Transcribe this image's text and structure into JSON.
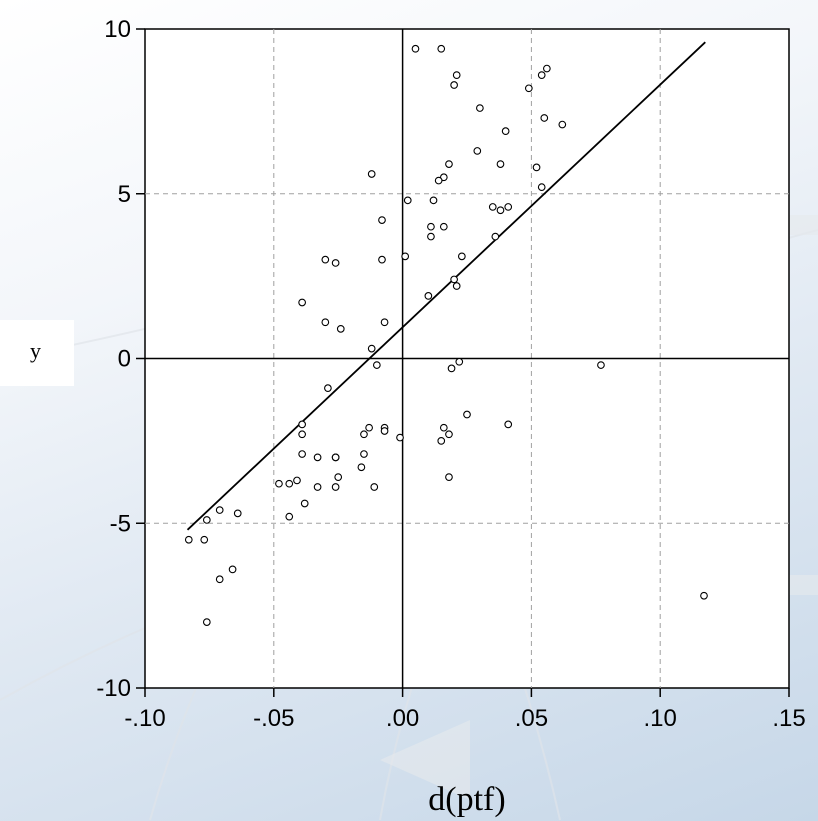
{
  "chart_data": {
    "type": "scatter",
    "title": "",
    "xlabel": "d(ptf)",
    "ylabel": "y",
    "xlim": [
      -0.1,
      0.15
    ],
    "ylim": [
      -10,
      10
    ],
    "x_ticks": [
      -0.1,
      -0.05,
      0.0,
      0.05,
      0.1,
      0.15
    ],
    "x_tick_labels": [
      "-.10",
      "-.05",
      ".00",
      ".05",
      ".10",
      ".15"
    ],
    "y_ticks": [
      -10,
      -5,
      0,
      5,
      10
    ],
    "y_tick_labels": [
      "-10",
      "-5",
      "0",
      "5",
      "10"
    ],
    "grid": true,
    "reference_lines": {
      "x": 0,
      "y": 0
    },
    "fit_line": {
      "x": [
        -0.0835,
        0.1175
      ],
      "y": [
        -5.2,
        9.6
      ]
    },
    "points": [
      [
        0.005,
        9.4
      ],
      [
        0.015,
        9.4
      ],
      [
        0.056,
        8.8
      ],
      [
        0.021,
        8.6
      ],
      [
        0.054,
        8.6
      ],
      [
        0.02,
        8.3
      ],
      [
        0.049,
        8.2
      ],
      [
        0.03,
        7.6
      ],
      [
        0.055,
        7.3
      ],
      [
        0.062,
        7.1
      ],
      [
        0.04,
        6.9
      ],
      [
        0.029,
        6.3
      ],
      [
        0.038,
        5.9
      ],
      [
        0.018,
        5.9
      ],
      [
        0.052,
        5.8
      ],
      [
        -0.012,
        5.6
      ],
      [
        0.016,
        5.5
      ],
      [
        0.014,
        5.4
      ],
      [
        0.054,
        5.2
      ],
      [
        0.002,
        4.8
      ],
      [
        0.012,
        4.8
      ],
      [
        0.035,
        4.6
      ],
      [
        0.041,
        4.6
      ],
      [
        0.038,
        4.5
      ],
      [
        -0.008,
        4.2
      ],
      [
        0.011,
        4.0
      ],
      [
        0.016,
        4.0
      ],
      [
        0.011,
        3.7
      ],
      [
        0.036,
        3.7
      ],
      [
        0.023,
        3.1
      ],
      [
        0.001,
        3.1
      ],
      [
        -0.03,
        3.0
      ],
      [
        -0.026,
        2.9
      ],
      [
        -0.008,
        3.0
      ],
      [
        0.02,
        2.4
      ],
      [
        0.021,
        2.2
      ],
      [
        0.01,
        1.9
      ],
      [
        -0.039,
        1.7
      ],
      [
        -0.03,
        1.1
      ],
      [
        -0.007,
        1.1
      ],
      [
        -0.024,
        0.9
      ],
      [
        -0.012,
        0.3
      ],
      [
        -0.01,
        -0.2
      ],
      [
        0.022,
        -0.1
      ],
      [
        0.019,
        -0.3
      ],
      [
        0.077,
        -0.2
      ],
      [
        -0.029,
        -0.9
      ],
      [
        0.025,
        -1.7
      ],
      [
        0.041,
        -2.0
      ],
      [
        -0.039,
        -2.0
      ],
      [
        -0.007,
        -2.1
      ],
      [
        -0.013,
        -2.1
      ],
      [
        0.016,
        -2.1
      ],
      [
        -0.007,
        -2.2
      ],
      [
        -0.039,
        -2.3
      ],
      [
        -0.015,
        -2.3
      ],
      [
        0.018,
        -2.3
      ],
      [
        -0.001,
        -2.4
      ],
      [
        0.015,
        -2.5
      ],
      [
        -0.039,
        -2.9
      ],
      [
        -0.033,
        -3.0
      ],
      [
        -0.015,
        -2.9
      ],
      [
        -0.026,
        -3.0
      ],
      [
        -0.026,
        -3.0
      ],
      [
        -0.016,
        -3.3
      ],
      [
        0.018,
        -3.6
      ],
      [
        -0.025,
        -3.6
      ],
      [
        -0.041,
        -3.7
      ],
      [
        -0.044,
        -3.8
      ],
      [
        -0.048,
        -3.8
      ],
      [
        -0.026,
        -3.9
      ],
      [
        -0.033,
        -3.9
      ],
      [
        -0.011,
        -3.9
      ],
      [
        -0.038,
        -4.4
      ],
      [
        -0.071,
        -4.6
      ],
      [
        -0.064,
        -4.7
      ],
      [
        -0.044,
        -4.8
      ],
      [
        -0.076,
        -4.9
      ],
      [
        -0.083,
        -5.5
      ],
      [
        -0.077,
        -5.5
      ],
      [
        -0.066,
        -6.4
      ],
      [
        -0.071,
        -6.7
      ],
      [
        -0.076,
        -8.0
      ],
      [
        0.117,
        -7.2
      ]
    ]
  }
}
